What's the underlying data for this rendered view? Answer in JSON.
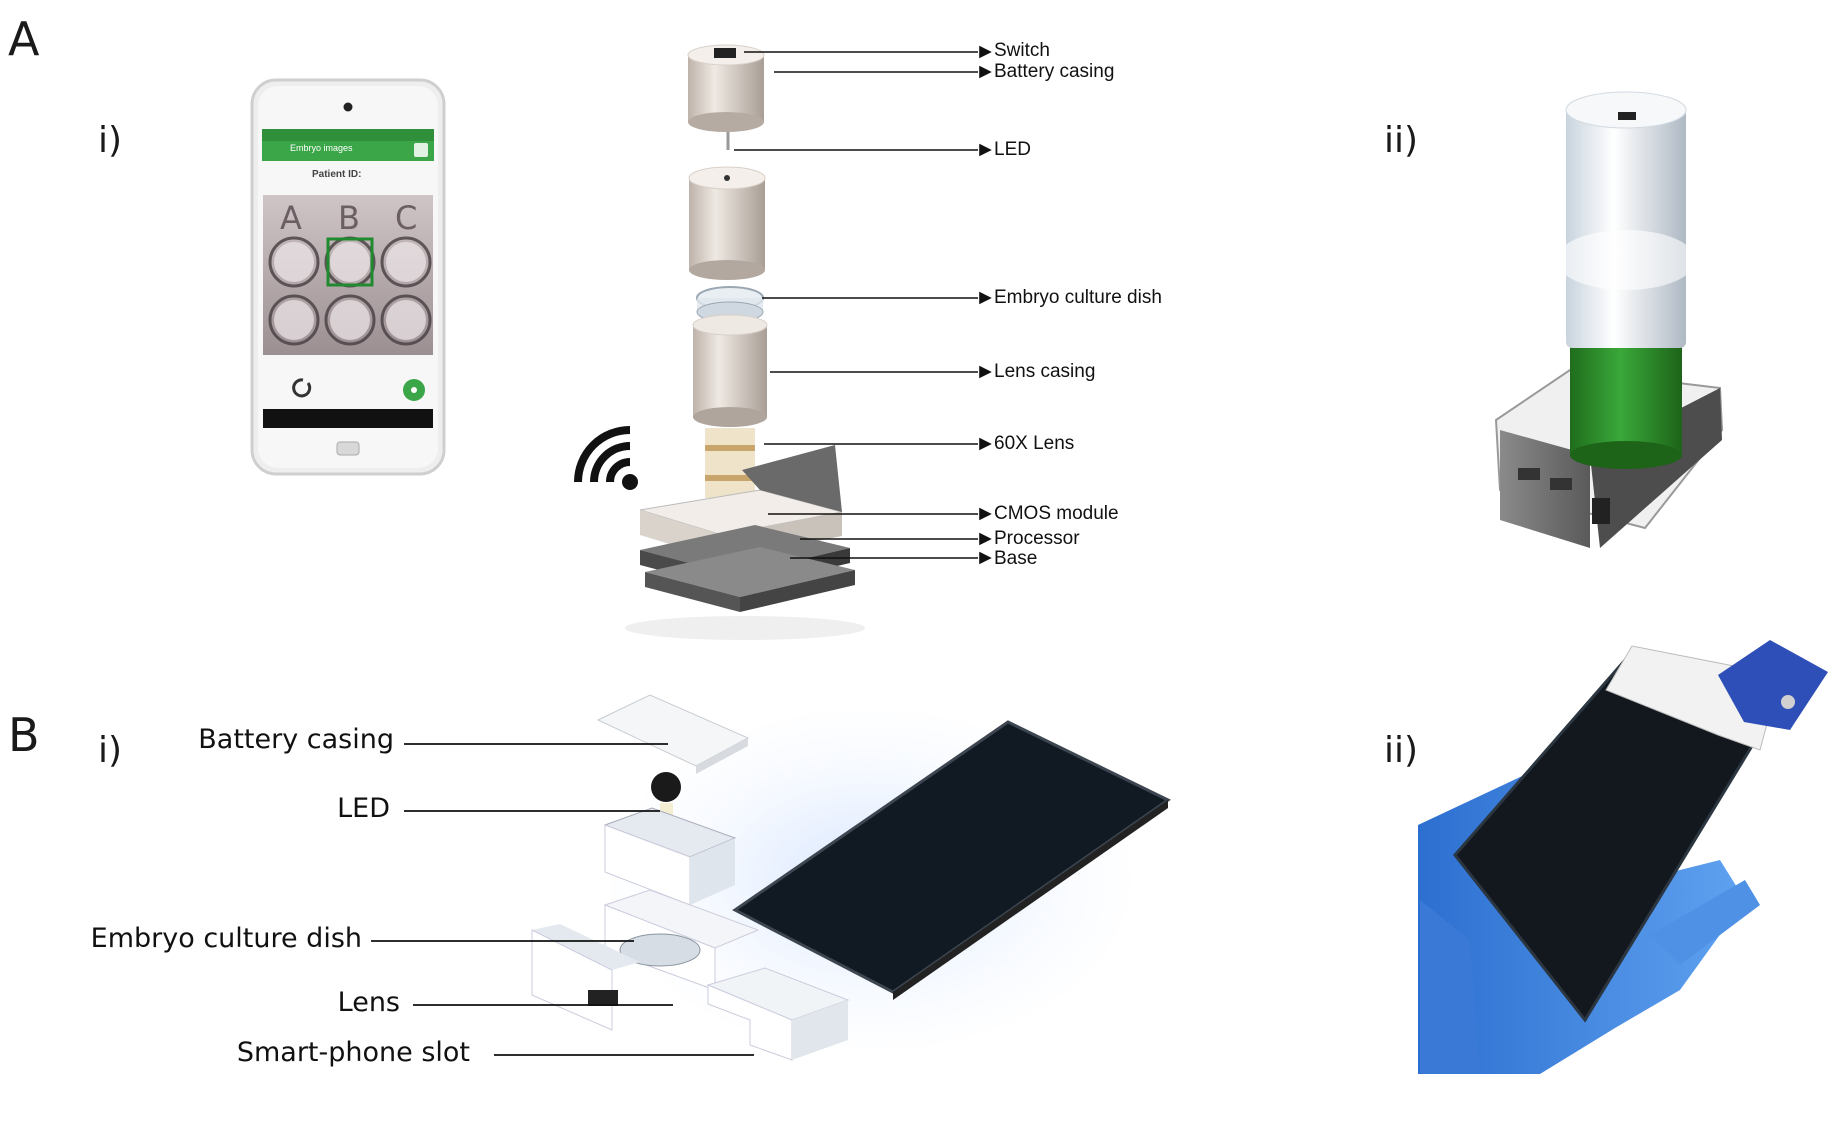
{
  "panels": {
    "a": {
      "letter": "A",
      "i": "i)",
      "ii": "ii)"
    },
    "b": {
      "letter": "B",
      "i": "i)",
      "ii": "ii)"
    }
  },
  "phone_app": {
    "title": "Embryo images",
    "patient_label": "Patient ID:",
    "wells": [
      "A",
      "B",
      "C"
    ],
    "accent": "#3aa648"
  },
  "labels_a": [
    "Switch",
    "Battery casing",
    "LED",
    "Embryo culture dish",
    "Lens casing",
    "60X Lens",
    "CMOS module",
    "Processor",
    "Base"
  ],
  "labels_b": [
    "Battery casing",
    "LED",
    "Embryo culture dish",
    "Lens",
    "Smart-phone slot"
  ],
  "colors": {
    "glove": "#3f86e0",
    "green_casing": "#2e8f2a",
    "led_glow": "#eef6ff"
  }
}
